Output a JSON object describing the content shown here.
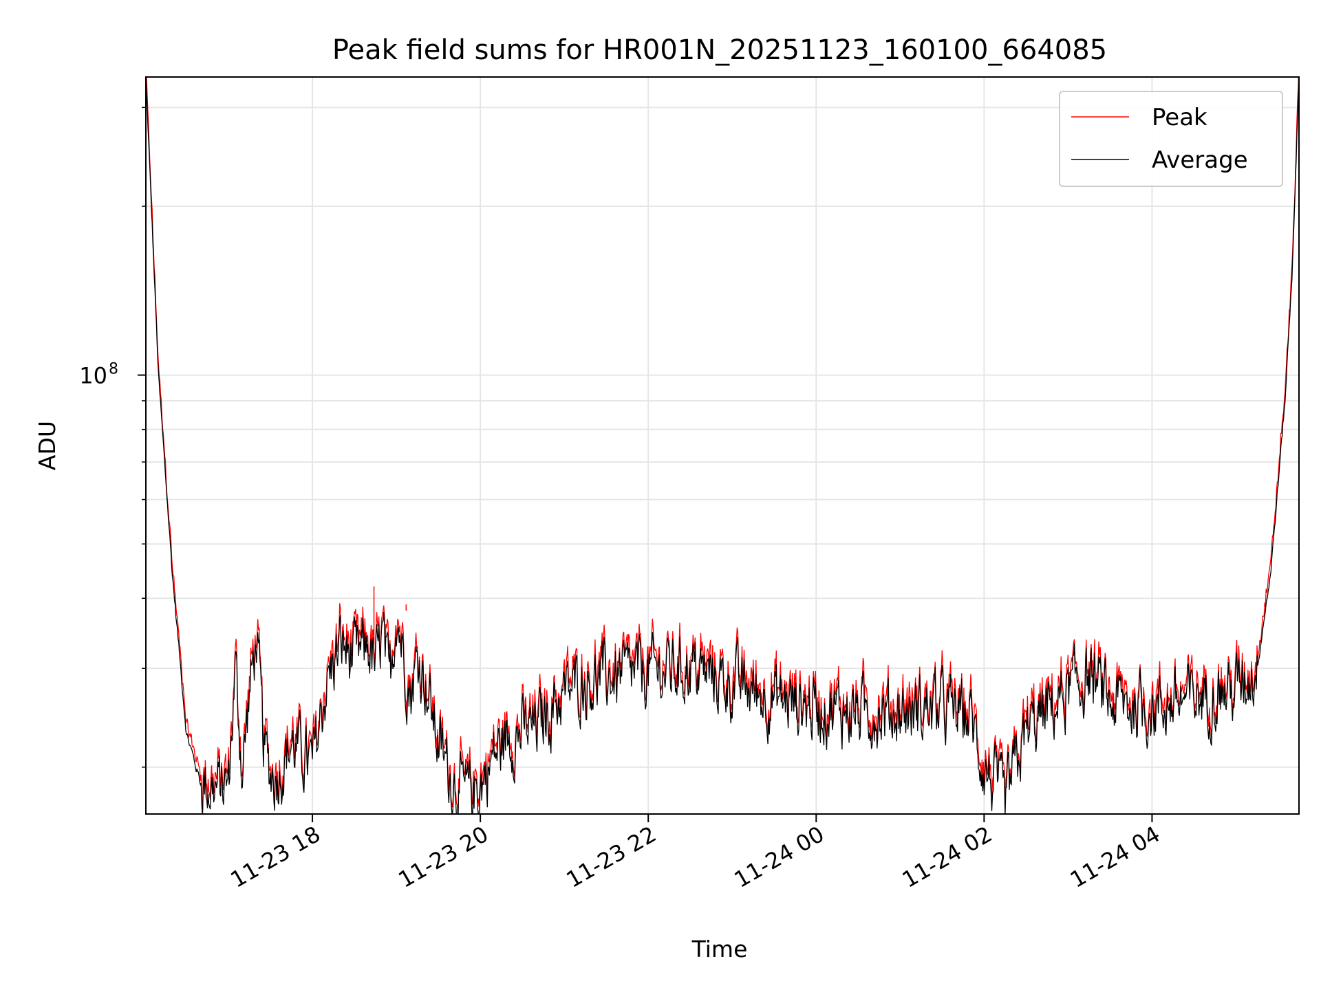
{
  "chart_data": {
    "type": "line",
    "title": "Peak field sums for HR001N_20251123_160100_664085",
    "xlabel": "Time",
    "ylabel": "ADU",
    "y_scale": "log",
    "ylim": [
      16500000,
      340000000
    ],
    "xlim": [
      "2025-11-23 16:01",
      "2025-11-24 05:45"
    ],
    "grid": true,
    "legend_position": "top-right",
    "x_ticks": [
      {
        "label": "11-23 18",
        "time": "2025-11-23 18:00"
      },
      {
        "label": "11-23 20",
        "time": "2025-11-23 20:00"
      },
      {
        "label": "11-23 22",
        "time": "2025-11-23 22:00"
      },
      {
        "label": "11-24 00",
        "time": "2025-11-24 00:00"
      },
      {
        "label": "11-24 02",
        "time": "2025-11-24 02:00"
      },
      {
        "label": "11-24 04",
        "time": "2025-11-24 04:00"
      }
    ],
    "y_major_ticks": [
      {
        "base": "10",
        "exponent": "8",
        "value": 100000000
      }
    ],
    "y_minor_ticks": [
      20000000,
      30000000,
      40000000,
      50000000,
      60000000,
      70000000,
      80000000,
      90000000,
      200000000,
      300000000
    ],
    "series": [
      {
        "name": "Peak",
        "color": "#ff0000"
      },
      {
        "name": "Average",
        "color": "#000000"
      }
    ],
    "time_points": [
      "2025-11-23 16:01",
      "2025-11-23 16:10",
      "2025-11-23 16:20",
      "2025-11-23 16:30",
      "2025-11-23 16:40",
      "2025-11-23 16:50",
      "2025-11-23 17:00",
      "2025-11-23 17:05",
      "2025-11-23 17:10",
      "2025-11-23 17:15",
      "2025-11-23 17:20",
      "2025-11-23 17:25",
      "2025-11-23 17:30",
      "2025-11-23 17:35",
      "2025-11-23 17:45",
      "2025-11-23 18:00",
      "2025-11-23 18:10",
      "2025-11-23 18:20",
      "2025-11-23 18:30",
      "2025-11-23 18:40",
      "2025-11-23 18:45",
      "2025-11-23 18:50",
      "2025-11-23 18:55",
      "2025-11-23 19:00",
      "2025-11-23 19:10",
      "2025-11-23 19:15",
      "2025-11-23 19:20",
      "2025-11-23 19:30",
      "2025-11-23 19:40",
      "2025-11-23 19:50",
      "2025-11-23 20:00",
      "2025-11-23 20:10",
      "2025-11-23 20:20",
      "2025-11-23 20:40",
      "2025-11-23 21:00",
      "2025-11-23 21:10",
      "2025-11-23 21:20",
      "2025-11-23 21:40",
      "2025-11-23 22:00",
      "2025-11-23 22:30",
      "2025-11-23 22:45",
      "2025-11-23 23:00",
      "2025-11-23 23:30",
      "2025-11-24 00:00",
      "2025-11-24 00:30",
      "2025-11-24 01:00",
      "2025-11-24 01:30",
      "2025-11-24 01:50",
      "2025-11-24 02:00",
      "2025-11-24 02:15",
      "2025-11-24 02:30",
      "2025-11-24 02:45",
      "2025-11-24 03:00",
      "2025-11-24 03:15",
      "2025-11-24 03:30",
      "2025-11-24 04:00",
      "2025-11-24 04:30",
      "2025-11-24 05:00",
      "2025-11-24 05:15",
      "2025-11-24 05:25",
      "2025-11-24 05:35",
      "2025-11-24 05:40",
      "2025-11-24 05:45"
    ],
    "base_values": [
      340000000,
      100000000,
      44000000,
      23000000,
      18800000,
      18300000,
      18600000,
      30000000,
      19500000,
      27000000,
      34000000,
      22000000,
      19500000,
      19300000,
      22000000,
      20000000,
      28000000,
      33000000,
      31000000,
      33000000,
      30000000,
      34000000,
      28000000,
      38000000,
      27000000,
      31000000,
      29000000,
      22000000,
      19000000,
      17800000,
      18500000,
      21000000,
      22500000,
      23500000,
      27000000,
      28000000,
      28500000,
      29000000,
      29500000,
      30000000,
      29000000,
      28000000,
      26500000,
      25500000,
      25000000,
      25000000,
      25500000,
      24500000,
      20000000,
      17200000,
      23000000,
      25000000,
      27000000,
      29000000,
      26000000,
      25500000,
      26500000,
      27500000,
      30000000,
      45000000,
      90000000,
      150000000,
      340000000
    ],
    "notable_spikes": [
      {
        "time": "2025-11-23 18:44",
        "peak": 42000000,
        "average": 33000000
      },
      {
        "time": "2025-11-23 19:07",
        "peak": 39000000,
        "average": 38000000
      }
    ]
  }
}
